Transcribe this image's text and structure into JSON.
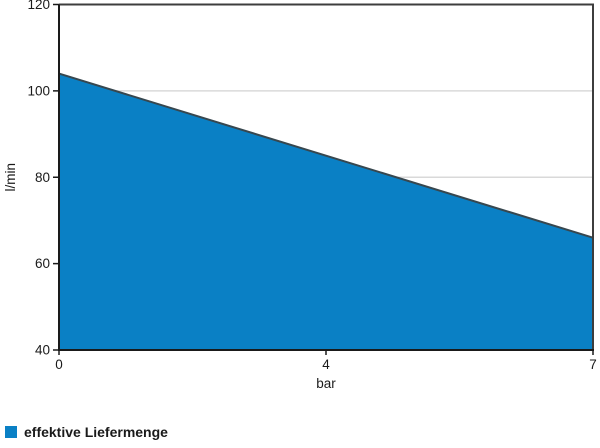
{
  "legend": {
    "label": "effektive Liefermenge"
  },
  "chart_data": {
    "type": "area",
    "title": "",
    "xlabel": "bar",
    "ylabel": "l/min",
    "x": [
      0,
      7
    ],
    "values": [
      104,
      66
    ],
    "series_name": "effektive Liefermenge",
    "xlim": [
      0,
      7
    ],
    "ylim": [
      40,
      120
    ],
    "yticks": [
      120,
      100,
      80,
      60,
      40
    ],
    "xticks": [
      {
        "label": "0",
        "frac": 0
      },
      {
        "label": "4",
        "frac": 0.5
      },
      {
        "label": "7",
        "frac": 1
      }
    ],
    "grid": "horizontal",
    "legend_position": "bottom-left",
    "colors": {
      "area_fill": "#0A80C5",
      "area_stroke": "#37474F",
      "axis": "#1A1A1A",
      "border": "#3D3D3D",
      "grid": "#D9D9D9",
      "text": "#1A1A1A"
    }
  }
}
